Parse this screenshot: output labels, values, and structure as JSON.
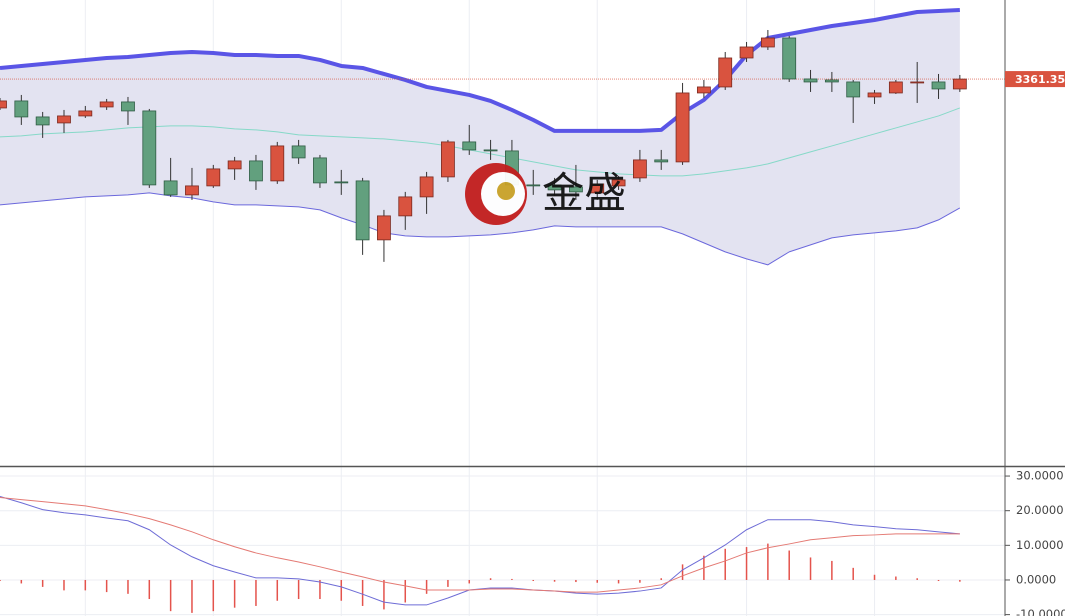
{
  "chart_data": [
    {
      "type": "candlestick",
      "watermark": "金盛",
      "ylim": [
        3206.5,
        3393
      ],
      "last_price": 3361.35,
      "last_price_color": "#d9533f",
      "up_color": "#d9533f",
      "down_color": "#62a07e",
      "open": [
        3349.8,
        3352.6,
        3346.2,
        3343.8,
        3346.6,
        3350.2,
        3352.2,
        3348.6,
        3320.6,
        3315.0,
        3318.6,
        3325.4,
        3328.6,
        3320.6,
        3334.6,
        3329.8,
        3320.2,
        3320.6,
        3297.0,
        3306.6,
        3314.2,
        3322.2,
        3336.2,
        3333.0,
        3332.6,
        3319.0,
        3319.0,
        3318.2,
        3315.8,
        3318.6,
        3321.8,
        3329.0,
        3328.2,
        3355.8,
        3358.2,
        3369.8,
        3374.2,
        3377.8,
        3361.4,
        3361.0,
        3360.2,
        3354.2,
        3355.8,
        3359.8,
        3360.2,
        3357.4
      ],
      "high": [
        3353.8,
        3355.0,
        3348.2,
        3349.0,
        3350.6,
        3353.4,
        3354.2,
        3349.4,
        3329.8,
        3325.8,
        3327.0,
        3330.2,
        3331.0,
        3336.2,
        3337.0,
        3331.0,
        3325.0,
        3321.8,
        3309.0,
        3316.2,
        3324.2,
        3337.0,
        3343.0,
        3337.0,
        3337.0,
        3325.0,
        3321.8,
        3327.0,
        3321.0,
        3322.6,
        3333.0,
        3333.0,
        3359.8,
        3361.0,
        3372.2,
        3376.2,
        3381.0,
        3378.6,
        3365.0,
        3364.2,
        3361.0,
        3357.0,
        3361.0,
        3368.2,
        3363.4,
        3363.0
      ],
      "low": [
        3349.0,
        3343.0,
        3337.8,
        3339.8,
        3345.8,
        3349.0,
        3343.0,
        3317.8,
        3314.2,
        3313.0,
        3317.8,
        3321.0,
        3317.0,
        3319.4,
        3327.4,
        3317.8,
        3315.0,
        3291.0,
        3288.2,
        3301.0,
        3307.4,
        3320.2,
        3331.0,
        3329.0,
        3317.0,
        3315.0,
        3314.6,
        3313.0,
        3313.0,
        3317.0,
        3320.2,
        3325.0,
        3327.0,
        3353.8,
        3357.0,
        3368.2,
        3373.0,
        3360.2,
        3356.2,
        3356.2,
        3343.8,
        3351.4,
        3355.4,
        3351.8,
        3353.4,
        3356.2
      ],
      "close": [
        3352.6,
        3346.2,
        3343.0,
        3346.6,
        3348.6,
        3352.2,
        3348.6,
        3319.0,
        3315.0,
        3318.6,
        3325.4,
        3328.6,
        3320.6,
        3334.6,
        3329.8,
        3319.8,
        3319.8,
        3297.0,
        3306.6,
        3314.2,
        3322.2,
        3336.2,
        3333.0,
        3332.6,
        3319.0,
        3318.6,
        3317.0,
        3316.2,
        3319.4,
        3321.0,
        3329.0,
        3328.2,
        3355.8,
        3358.2,
        3369.8,
        3374.2,
        3377.8,
        3361.4,
        3360.2,
        3360.2,
        3354.2,
        3355.8,
        3360.2,
        3360.2,
        3357.4,
        3361.35
      ],
      "bollinger": {
        "fill": "#e3e3f1",
        "upper": {
          "color": "#5a55e6",
          "values": [
            3365.8,
            3366.6,
            3367.4,
            3368.2,
            3369.0,
            3369.8,
            3370.2,
            3371.0,
            3371.8,
            3372.2,
            3371.8,
            3371.0,
            3371.0,
            3370.6,
            3370.6,
            3369.0,
            3366.6,
            3365.8,
            3363.4,
            3361.0,
            3358.2,
            3356.6,
            3355.0,
            3352.6,
            3349.0,
            3345.0,
            3340.6,
            3340.6,
            3340.6,
            3340.6,
            3340.6,
            3341.0,
            3347.8,
            3353.0,
            3361.0,
            3371.0,
            3377.8,
            3379.4,
            3381.0,
            3382.6,
            3383.8,
            3385.0,
            3386.6,
            3388.2,
            3388.6,
            3389.0
          ]
        },
        "middle": {
          "color": "#86d9c8",
          "values": [
            3338.2,
            3338.6,
            3339.4,
            3339.8,
            3340.2,
            3341.0,
            3341.8,
            3342.2,
            3342.6,
            3342.6,
            3342.2,
            3341.4,
            3341.0,
            3340.2,
            3339.0,
            3338.6,
            3338.2,
            3337.8,
            3337.4,
            3336.6,
            3335.8,
            3334.6,
            3333.0,
            3331.4,
            3329.8,
            3328.2,
            3326.6,
            3325.0,
            3324.2,
            3323.4,
            3323.0,
            3322.6,
            3322.6,
            3323.4,
            3324.6,
            3325.8,
            3327.4,
            3329.8,
            3332.2,
            3334.6,
            3337.0,
            3339.4,
            3341.8,
            3344.2,
            3346.6,
            3349.8
          ]
        },
        "lower": {
          "color": "#6b68dc",
          "values": [
            3311.0,
            3311.8,
            3312.6,
            3313.4,
            3314.2,
            3314.6,
            3315.0,
            3315.8,
            3314.6,
            3313.8,
            3312.2,
            3311.0,
            3311.0,
            3310.6,
            3310.2,
            3309.0,
            3305.8,
            3303.0,
            3299.8,
            3298.6,
            3298.2,
            3298.2,
            3298.6,
            3299.0,
            3299.8,
            3301.0,
            3302.6,
            3302.2,
            3302.2,
            3302.2,
            3302.2,
            3302.2,
            3299.4,
            3295.8,
            3292.2,
            3289.4,
            3287.0,
            3292.2,
            3295.0,
            3297.8,
            3299.0,
            3299.8,
            3300.6,
            3301.8,
            3305.0,
            3309.8
          ]
        }
      }
    },
    {
      "type": "macd",
      "ylim": [
        -10.4,
        32.9
      ],
      "yticks": [
        {
          "value": 30,
          "label": "30.0000"
        },
        {
          "value": 20,
          "label": "20.0000"
        },
        {
          "value": 10,
          "label": "10.0000"
        },
        {
          "value": 0,
          "label": "0.0000"
        },
        {
          "value": -10,
          "label": "-10.0000"
        }
      ],
      "grid": true,
      "histogram": {
        "color": "#e4534c",
        "values": [
          -0.3,
          -1,
          -2,
          -3,
          -3,
          -3.5,
          -4,
          -5.5,
          -9,
          -9.5,
          -9,
          -8,
          -7.5,
          -6,
          -5.5,
          -5.5,
          -6,
          -7.5,
          -8.5,
          -6.5,
          -4,
          -2,
          -1,
          0.5,
          0.3,
          -0.3,
          -0.5,
          -0.6,
          -0.8,
          -1,
          -0.8,
          0.5,
          4.5,
          7,
          9,
          9.5,
          10.5,
          8.5,
          6.5,
          5.5,
          3.5,
          1.5,
          1,
          0.5,
          -0.3,
          -0.5
        ]
      },
      "series": [
        {
          "color": "#6e6cd6",
          "values": [
            24.1,
            22.3,
            20.3,
            19.4,
            18.8,
            17.9,
            17.1,
            14.5,
            10.1,
            6.7,
            4.1,
            2.3,
            0.6,
            0.6,
            0.3,
            -0.6,
            -2.0,
            -4.1,
            -6.4,
            -7.2,
            -7.2,
            -5.2,
            -2.9,
            -2.3,
            -2.3,
            -2.9,
            -3.2,
            -3.8,
            -4.1,
            -3.8,
            -3.2,
            -2.3,
            2.9,
            6.4,
            10.1,
            14.5,
            17.4,
            17.4,
            17.4,
            16.8,
            15.9,
            15.4,
            14.8,
            14.5,
            13.9,
            13.3
          ]
        },
        {
          "color": "#e47a74",
          "values": [
            23.8,
            23.2,
            22.6,
            22.0,
            21.4,
            20.3,
            19.1,
            17.7,
            15.9,
            13.9,
            11.6,
            9.6,
            7.8,
            6.4,
            5.2,
            3.8,
            2.3,
            0.9,
            -0.6,
            -1.7,
            -2.9,
            -2.9,
            -2.9,
            -2.6,
            -2.6,
            -2.9,
            -3.2,
            -3.5,
            -3.5,
            -2.9,
            -2.3,
            -1.4,
            1.2,
            3.5,
            5.5,
            7.8,
            9.3,
            10.4,
            11.6,
            12.2,
            12.8,
            13.0,
            13.3,
            13.3,
            13.3,
            13.3
          ]
        }
      ]
    }
  ]
}
